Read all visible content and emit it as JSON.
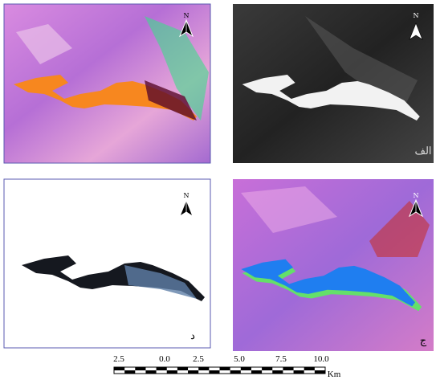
{
  "panels": [
    {
      "north": "N"
    },
    {
      "north": "N",
      "label": "الف"
    },
    {
      "north": "N",
      "label": "د"
    },
    {
      "north": "N",
      "label": "ج"
    }
  ],
  "scale_bar": {
    "ticks": [
      "2.5",
      "0.0",
      "2.5",
      "5.0",
      "7.5",
      "10.0"
    ],
    "unit": "Km"
  }
}
